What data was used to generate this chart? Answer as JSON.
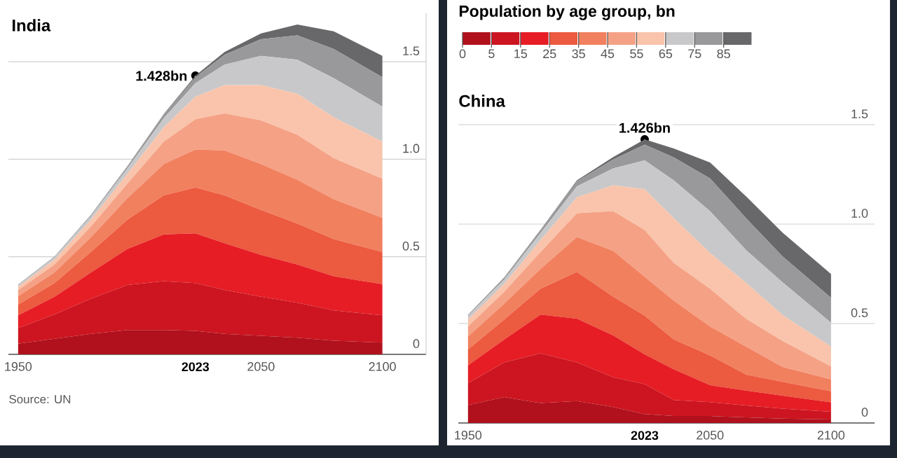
{
  "chart_data": [
    {
      "type": "area",
      "stacked": true,
      "title": "India",
      "grid": "y",
      "x": [
        1950,
        1965,
        1980,
        1995,
        2010,
        2023,
        2035,
        2050,
        2065,
        2080,
        2100
      ],
      "xlim": [
        1946,
        2118
      ],
      "ylim": [
        0,
        1.75
      ],
      "xticks": [
        1950,
        2050,
        2100
      ],
      "yticks": [
        0,
        0.5,
        {
          "value": 1,
          "label": "1.0"
        },
        1.5
      ],
      "ref_lines": [
        {
          "axis": "x",
          "value": 2023,
          "label": "2023",
          "color": "#ffffff"
        }
      ],
      "annotations": [
        {
          "text": "1.428bn",
          "x": 2023,
          "y": 1.428
        },
        "Source: UN"
      ],
      "series": [
        {
          "color": "#b0111c",
          "values": [
            0.055,
            0.08,
            0.105,
            0.125,
            0.125,
            0.12,
            0.105,
            0.095,
            0.085,
            0.07,
            0.06
          ]
        },
        {
          "color": "#cc1520",
          "values": [
            0.08,
            0.125,
            0.18,
            0.23,
            0.25,
            0.245,
            0.225,
            0.2,
            0.18,
            0.155,
            0.14
          ]
        },
        {
          "color": "#e61d25",
          "values": [
            0.065,
            0.09,
            0.135,
            0.185,
            0.24,
            0.255,
            0.24,
            0.215,
            0.195,
            0.175,
            0.16
          ]
        },
        {
          "color": "#ec5a3f",
          "values": [
            0.055,
            0.07,
            0.105,
            0.15,
            0.2,
            0.235,
            0.245,
            0.23,
            0.21,
            0.19,
            0.165
          ]
        },
        {
          "color": "#f1805f",
          "values": [
            0.043,
            0.055,
            0.075,
            0.11,
            0.16,
            0.195,
            0.23,
            0.235,
            0.225,
            0.205,
            0.175
          ]
        },
        {
          "color": "#f5a185",
          "values": [
            0.031,
            0.04,
            0.055,
            0.075,
            0.115,
            0.155,
            0.19,
            0.225,
            0.23,
            0.21,
            0.2
          ]
        },
        {
          "color": "#f9c4ab",
          "values": [
            0.017,
            0.025,
            0.035,
            0.05,
            0.075,
            0.115,
            0.145,
            0.18,
            0.21,
            0.21,
            0.19
          ]
        },
        {
          "color": "#c8c8ca",
          "values": [
            0.008,
            0.012,
            0.018,
            0.028,
            0.045,
            0.07,
            0.105,
            0.15,
            0.175,
            0.2,
            0.18
          ]
        },
        {
          "color": "#99999b",
          "values": [
            0.003,
            0.004,
            0.006,
            0.01,
            0.018,
            0.03,
            0.05,
            0.085,
            0.125,
            0.15,
            0.15
          ]
        },
        {
          "color": "#68686a",
          "values": [
            0.001,
            0.001,
            0.001,
            0.002,
            0.004,
            0.008,
            0.015,
            0.03,
            0.055,
            0.09,
            0.11
          ]
        }
      ]
    },
    {
      "type": "area",
      "stacked": true,
      "title": "Population by age group, bn",
      "subtitle": "China",
      "grid": "y",
      "legend": "top",
      "x": [
        1950,
        1965,
        1980,
        1995,
        2010,
        2023,
        2035,
        2050,
        2065,
        2080,
        2100
      ],
      "xlim": [
        1946,
        2118
      ],
      "ylim": [
        0,
        1.5
      ],
      "xticks": [
        1950,
        2050,
        2100
      ],
      "yticks": [
        0,
        0.5,
        {
          "value": 1,
          "label": "1.0"
        },
        1.5
      ],
      "ref_lines": [
        {
          "axis": "x",
          "value": 2023,
          "label": "2023",
          "color": "#ffffff"
        }
      ],
      "annotations": [
        {
          "text": "1.426bn",
          "x": 2023,
          "y": 1.426
        }
      ],
      "series": [
        {
          "name": "0",
          "color": "#b0111c",
          "values": [
            0.09,
            0.13,
            0.1,
            0.11,
            0.08,
            0.045,
            0.035,
            0.035,
            0.028,
            0.022,
            0.018
          ]
        },
        {
          "name": "5",
          "color": "#cc1520",
          "values": [
            0.11,
            0.175,
            0.25,
            0.195,
            0.15,
            0.15,
            0.08,
            0.07,
            0.06,
            0.05,
            0.038
          ]
        },
        {
          "name": "15",
          "color": "#e61d25",
          "values": [
            0.09,
            0.115,
            0.195,
            0.22,
            0.21,
            0.15,
            0.155,
            0.085,
            0.075,
            0.065,
            0.048
          ]
        },
        {
          "name": "25",
          "color": "#ec5a3f",
          "values": [
            0.08,
            0.1,
            0.13,
            0.235,
            0.195,
            0.195,
            0.15,
            0.15,
            0.08,
            0.07,
            0.055
          ]
        },
        {
          "name": "35",
          "color": "#f1805f",
          "values": [
            0.065,
            0.08,
            0.1,
            0.175,
            0.23,
            0.195,
            0.195,
            0.145,
            0.14,
            0.075,
            0.06
          ]
        },
        {
          "name": "45",
          "color": "#f5a185",
          "values": [
            0.05,
            0.06,
            0.085,
            0.12,
            0.2,
            0.235,
            0.19,
            0.19,
            0.14,
            0.13,
            0.065
          ]
        },
        {
          "name": "55",
          "color": "#f9c4ab",
          "values": [
            0.035,
            0.04,
            0.06,
            0.08,
            0.13,
            0.205,
            0.225,
            0.18,
            0.18,
            0.13,
            0.1
          ]
        },
        {
          "name": "65",
          "color": "#c8c8ca",
          "values": [
            0.018,
            0.022,
            0.035,
            0.055,
            0.085,
            0.145,
            0.19,
            0.21,
            0.165,
            0.165,
            0.12
          ]
        },
        {
          "name": "75",
          "color": "#99999b",
          "values": [
            0.005,
            0.008,
            0.014,
            0.025,
            0.045,
            0.08,
            0.115,
            0.165,
            0.16,
            0.13,
            0.125
          ]
        },
        {
          "name": "85",
          "color": "#68686a",
          "values": [
            0.001,
            0.002,
            0.003,
            0.005,
            0.012,
            0.026,
            0.045,
            0.08,
            0.11,
            0.12,
            0.12
          ]
        }
      ]
    }
  ]
}
